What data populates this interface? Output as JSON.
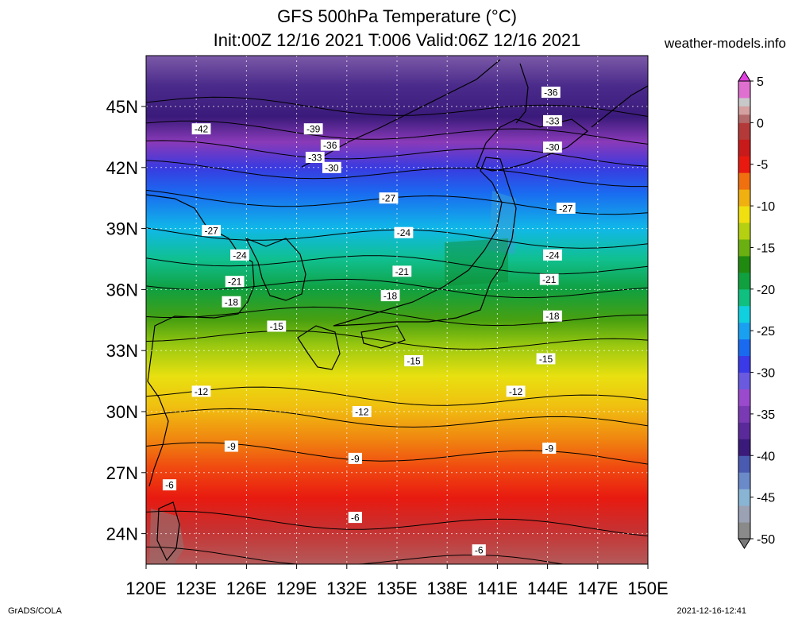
{
  "header": {
    "title_line1": "GFS 500hPa Temperature (°C)",
    "title_line2": "Init:00Z 12/16 2021 T:006 Valid:06Z 12/16 2021",
    "site": "weather-models.info"
  },
  "footer": {
    "left": "GrADS/COLA",
    "right": "2021-12-16-12:41"
  },
  "chart_data": {
    "type": "heatmap",
    "title": "GFS 500hPa Temperature (°C)",
    "x_axis": {
      "range": [
        120,
        150
      ],
      "ticks": [
        120,
        123,
        126,
        129,
        132,
        135,
        138,
        141,
        144,
        147,
        150
      ],
      "tick_labels": [
        "120E",
        "123E",
        "126E",
        "129E",
        "132E",
        "135E",
        "138E",
        "141E",
        "144E",
        "147E",
        "150E"
      ]
    },
    "y_axis": {
      "range": [
        22.5,
        47.5
      ],
      "ticks": [
        24,
        27,
        30,
        33,
        36,
        39,
        42,
        45
      ],
      "tick_labels": [
        "24N",
        "27N",
        "30N",
        "33N",
        "36N",
        "39N",
        "42N",
        "45N"
      ]
    },
    "grid": true,
    "colorbar": {
      "range": [
        -50,
        5
      ],
      "labels": [
        "5",
        "0",
        "-5",
        "-10",
        "-15",
        "-20",
        "-25",
        "-30",
        "-35",
        "-40",
        "-45",
        "-50"
      ],
      "label_values": [
        5,
        0,
        -5,
        -10,
        -15,
        -20,
        -25,
        -30,
        -35,
        -40,
        -45,
        -50
      ],
      "stops": [
        [
          -50,
          "#8a8a8a"
        ],
        [
          -48,
          "#9aa2b4"
        ],
        [
          -46,
          "#8ab4d4"
        ],
        [
          -44,
          "#6a8ac8"
        ],
        [
          -42,
          "#4a5ab0"
        ],
        [
          -40,
          "#3a1a7a"
        ],
        [
          -38,
          "#5a2a9a"
        ],
        [
          -36,
          "#7a3ab4"
        ],
        [
          -34,
          "#9a4acc"
        ],
        [
          -32,
          "#6a5ae0"
        ],
        [
          -30,
          "#3a3ae8"
        ],
        [
          -28,
          "#1a6af0"
        ],
        [
          -26,
          "#1aa0f0"
        ],
        [
          -24,
          "#10d0e0"
        ],
        [
          -22,
          "#10c080"
        ],
        [
          -20,
          "#10a040"
        ],
        [
          -18,
          "#208a10"
        ],
        [
          -16,
          "#6ab010"
        ],
        [
          -14,
          "#b4d010"
        ],
        [
          -12,
          "#f0e010"
        ],
        [
          -10,
          "#f0b010"
        ],
        [
          -8,
          "#f07010"
        ],
        [
          -6,
          "#e81a10"
        ],
        [
          -4,
          "#c81a1a"
        ],
        [
          -2,
          "#b43a3a"
        ],
        [
          0,
          "#b46a6a"
        ],
        [
          1,
          "#d4a0a0"
        ],
        [
          2,
          "#c8c8c8"
        ],
        [
          3,
          "#e070d0"
        ],
        [
          5,
          "#e040e0"
        ]
      ]
    },
    "isotherm_labels": [
      {
        "text": "-42",
        "lon": 123.3,
        "lat": 43.9
      },
      {
        "text": "-39",
        "lon": 130.0,
        "lat": 43.9
      },
      {
        "text": "-36",
        "lon": 131.0,
        "lat": 43.1
      },
      {
        "text": "-33",
        "lon": 130.1,
        "lat": 42.5
      },
      {
        "text": "-30",
        "lon": 131.1,
        "lat": 42.0
      },
      {
        "text": "-36",
        "lon": 144.2,
        "lat": 45.7
      },
      {
        "text": "-33",
        "lon": 144.3,
        "lat": 44.3
      },
      {
        "text": "-30",
        "lon": 144.3,
        "lat": 43.0
      },
      {
        "text": "-27",
        "lon": 134.5,
        "lat": 40.5
      },
      {
        "text": "-27",
        "lon": 145.1,
        "lat": 40.0
      },
      {
        "text": "-27",
        "lon": 123.9,
        "lat": 38.9
      },
      {
        "text": "-24",
        "lon": 135.4,
        "lat": 38.8
      },
      {
        "text": "-24",
        "lon": 125.6,
        "lat": 37.7
      },
      {
        "text": "-24",
        "lon": 144.3,
        "lat": 37.7
      },
      {
        "text": "-21",
        "lon": 135.3,
        "lat": 36.9
      },
      {
        "text": "-21",
        "lon": 125.3,
        "lat": 36.4
      },
      {
        "text": "-21",
        "lon": 144.1,
        "lat": 36.5
      },
      {
        "text": "-18",
        "lon": 125.1,
        "lat": 35.4
      },
      {
        "text": "-18",
        "lon": 134.6,
        "lat": 35.7
      },
      {
        "text": "-18",
        "lon": 144.3,
        "lat": 34.7
      },
      {
        "text": "-15",
        "lon": 127.8,
        "lat": 34.2
      },
      {
        "text": "-15",
        "lon": 136.0,
        "lat": 32.5
      },
      {
        "text": "-15",
        "lon": 143.9,
        "lat": 32.6
      },
      {
        "text": "-12",
        "lon": 123.3,
        "lat": 31.0
      },
      {
        "text": "-12",
        "lon": 132.9,
        "lat": 30.0
      },
      {
        "text": "-12",
        "lon": 142.1,
        "lat": 31.0
      },
      {
        "text": "-9",
        "lon": 125.1,
        "lat": 28.3
      },
      {
        "text": "-9",
        "lon": 132.5,
        "lat": 27.7
      },
      {
        "text": "-9",
        "lon": 144.1,
        "lat": 28.2
      },
      {
        "text": "-6",
        "lon": 121.4,
        "lat": 26.4
      },
      {
        "text": "-6",
        "lon": 132.5,
        "lat": 24.8
      },
      {
        "text": "-6",
        "lon": 139.9,
        "lat": 23.2
      }
    ]
  }
}
